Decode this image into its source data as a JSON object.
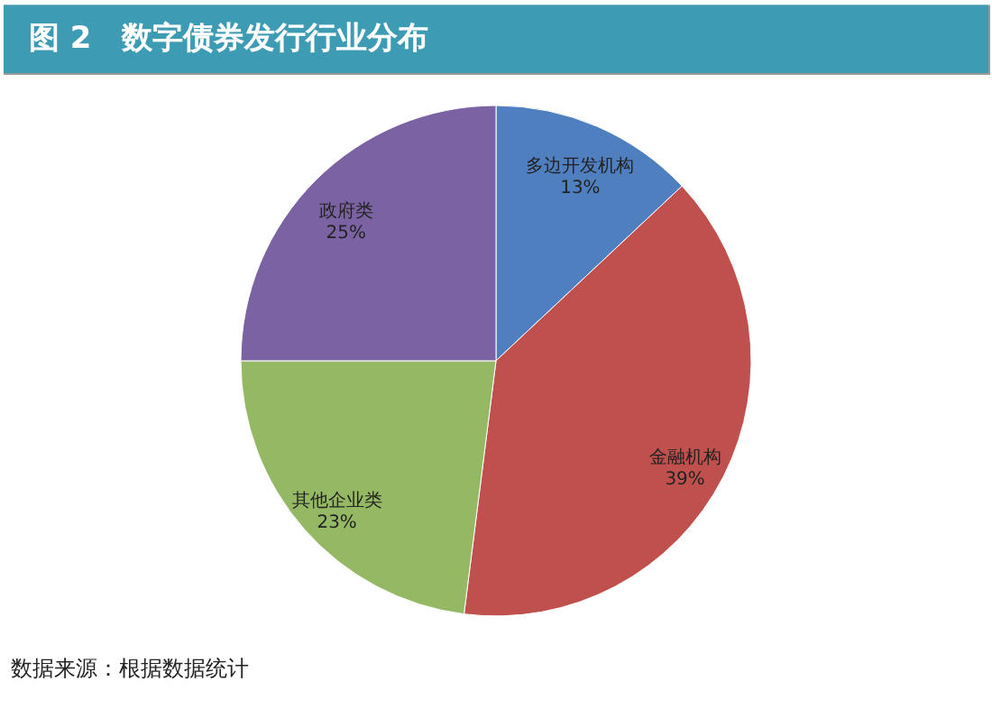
{
  "chart_data": {
    "type": "pie",
    "title": "图 2　数字债券发行行业分布",
    "categories": [
      "多边开发机构",
      "金融机构",
      "其他企业类",
      "政府类"
    ],
    "values": [
      13,
      39,
      23,
      25
    ],
    "colors": [
      "#4f7fbf",
      "#c0504d",
      "#94b863",
      "#7b63a3"
    ],
    "value_labels": [
      "13%",
      "39%",
      "23%",
      "25%"
    ],
    "legend": false,
    "annotations": [
      "数据来源：根据数据统计"
    ]
  }
}
